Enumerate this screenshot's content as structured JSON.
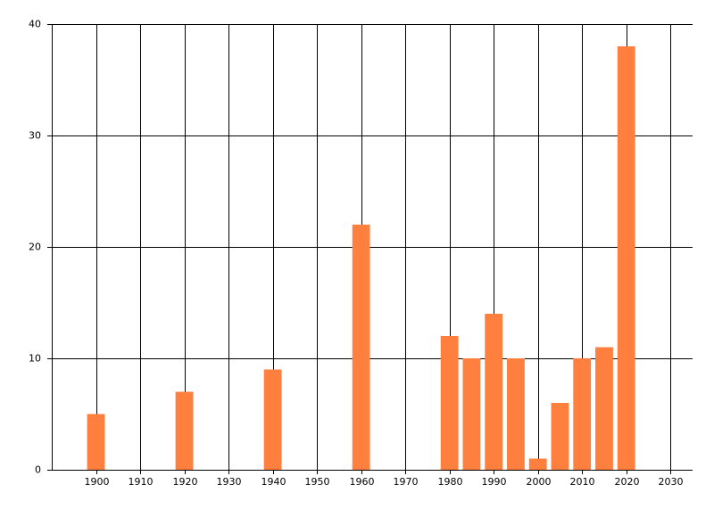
{
  "chart_data": {
    "type": "bar",
    "x": [
      1900,
      1920,
      1940,
      1960,
      1980,
      1985,
      1990,
      1995,
      2000,
      2005,
      2010,
      2015,
      2020
    ],
    "values": [
      5,
      7,
      9,
      22,
      12,
      10,
      14,
      10,
      1,
      6,
      10,
      11,
      38
    ],
    "color": "#ff7f3f",
    "xlim": [
      1890,
      2035
    ],
    "xticks": [
      1900,
      1910,
      1920,
      1930,
      1940,
      1950,
      1960,
      1970,
      1980,
      1990,
      2000,
      2010,
      2020,
      2030
    ],
    "ylim": [
      0,
      40
    ],
    "yticks": [
      0,
      10,
      20,
      30,
      40
    ],
    "grid": true
  }
}
